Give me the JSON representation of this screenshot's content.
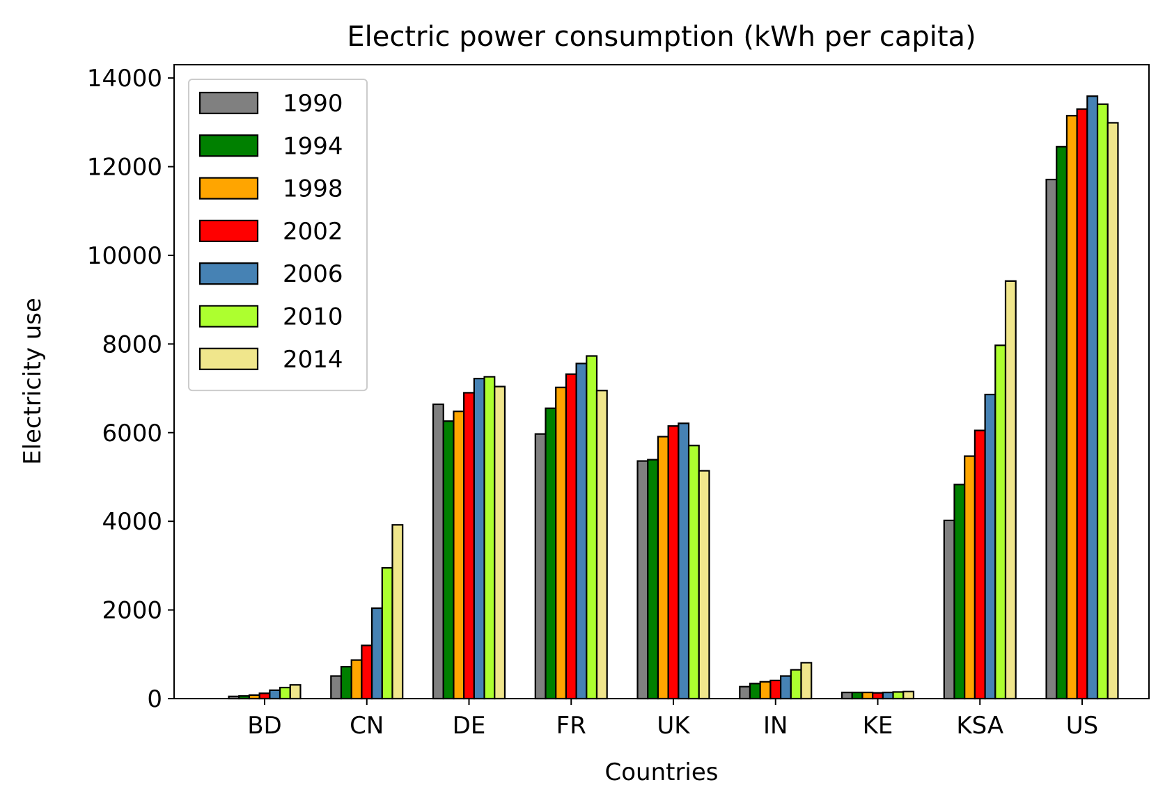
{
  "chart_data": {
    "type": "bar",
    "title": "Electric power consumption (kWh per capita)",
    "xlabel": "Countries",
    "ylabel": "Electricity use",
    "ylim": [
      0,
      14300
    ],
    "yticks": [
      0,
      2000,
      4000,
      6000,
      8000,
      10000,
      12000,
      14000
    ],
    "yticks_labels": [
      "0",
      "2000",
      "4000",
      "6000",
      "8000",
      "10000",
      "12000",
      "14000"
    ],
    "categories": [
      "BD",
      "CN",
      "DE",
      "FR",
      "UK",
      "IN",
      "KE",
      "KSA",
      "US"
    ],
    "legend_position": "upper-left",
    "grid": false,
    "series": [
      {
        "name": "1990",
        "color": "#808080",
        "values": [
          50,
          510,
          6640,
          5970,
          5360,
          270,
          140,
          4020,
          11710
        ]
      },
      {
        "name": "1994",
        "color": "#008000",
        "values": [
          60,
          720,
          6260,
          6550,
          5390,
          340,
          140,
          4830,
          12450
        ]
      },
      {
        "name": "1998",
        "color": "#FFA500",
        "values": [
          80,
          870,
          6480,
          7020,
          5910,
          380,
          140,
          5470,
          13150
        ]
      },
      {
        "name": "2002",
        "color": "#FF0000",
        "values": [
          120,
          1200,
          6900,
          7320,
          6150,
          410,
          130,
          6050,
          13300
        ]
      },
      {
        "name": "2006",
        "color": "#4682B4",
        "values": [
          190,
          2040,
          7220,
          7560,
          6210,
          510,
          140,
          6860,
          13590
        ]
      },
      {
        "name": "2010",
        "color": "#ADFF2F",
        "values": [
          250,
          2950,
          7260,
          7730,
          5710,
          650,
          150,
          7970,
          13410
        ]
      },
      {
        "name": "2014",
        "color": "#F0E68C",
        "values": [
          310,
          3920,
          7040,
          6950,
          5140,
          810,
          160,
          9420,
          12990
        ]
      }
    ]
  }
}
